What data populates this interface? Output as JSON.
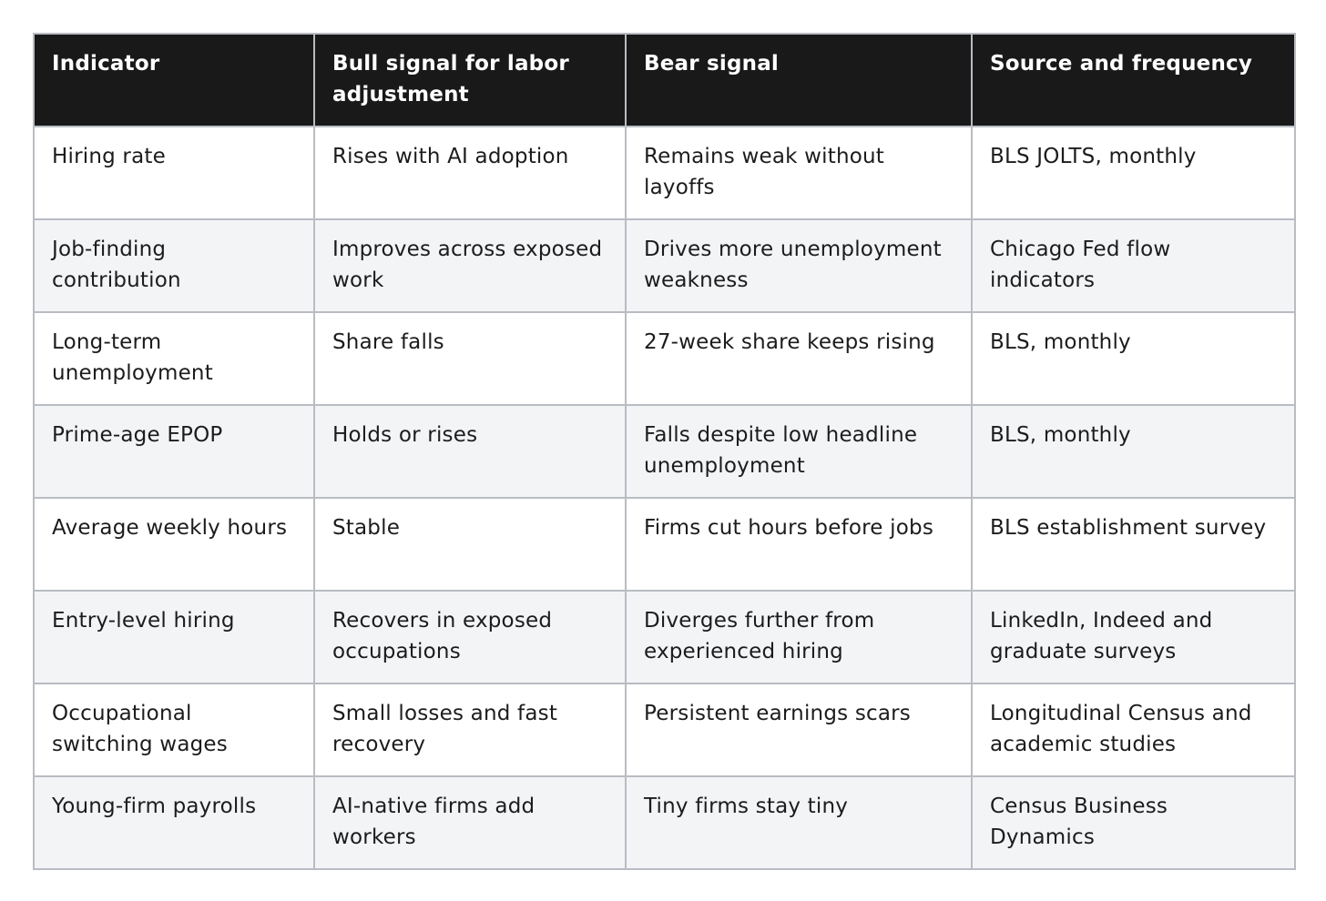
{
  "table": {
    "headers": [
      "Indicator",
      "Bull signal for labor adjustment",
      "Bear signal",
      "Source and frequency"
    ],
    "rows": [
      [
        "Hiring rate",
        "Rises with AI adoption",
        "Remains weak without layoffs",
        "BLS JOLTS, monthly"
      ],
      [
        "Job-finding contribution",
        "Improves across exposed work",
        "Drives more unemployment weakness",
        "Chicago Fed flow indicators"
      ],
      [
        "Long-term unemployment",
        "Share falls",
        "27-week share keeps rising",
        "BLS, monthly"
      ],
      [
        "Prime-age EPOP",
        "Holds or rises",
        "Falls despite low headline unemployment",
        "BLS, monthly"
      ],
      [
        "Average weekly hours",
        "Stable",
        "Firms cut hours before jobs",
        "BLS establishment survey"
      ],
      [
        "Entry-level hiring",
        "Recovers in exposed occupations",
        "Diverges further from experienced hiring",
        "LinkedIn, Indeed and graduate surveys"
      ],
      [
        "Occupational switching wages",
        "Small losses and fast recovery",
        "Persistent earnings scars",
        "Longitudinal Census and academic studies"
      ],
      [
        "Young-firm payrolls",
        "AI-native firms add workers",
        "Tiny firms stay tiny",
        "Census Business Dynamics"
      ]
    ]
  },
  "colors": {
    "header_background": "#191919",
    "header_text": "#ffffff",
    "row_alt_background": "#f3f4f6",
    "border": "#b9bcc2"
  }
}
